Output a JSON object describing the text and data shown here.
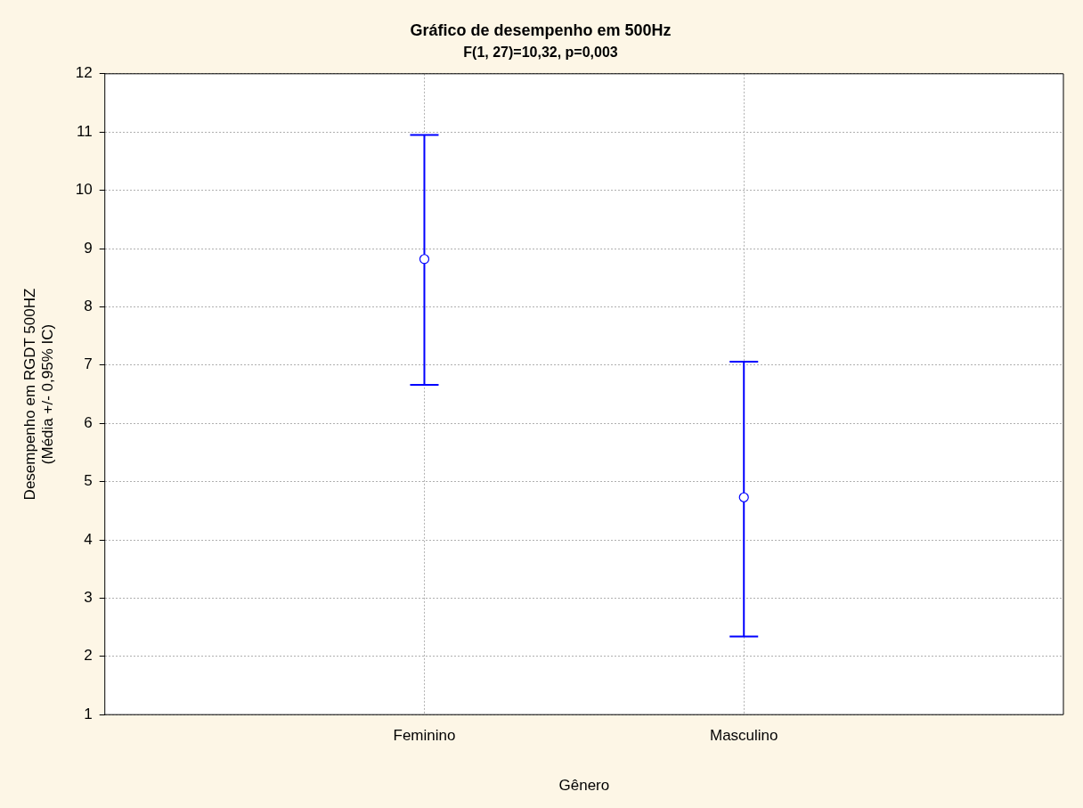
{
  "chart_data": {
    "type": "scatter",
    "title": "Gráfico de desempenho em 500Hz",
    "subtitle": "F(1, 27)=10,32, p=0,003",
    "xlabel": "Gênero",
    "ylabel": "Desempenho em RGDT 500HZ\n(Média +/- 0,95% IC)",
    "categories": [
      "Feminino",
      "Masculino"
    ],
    "series": [
      {
        "color": "#0000ff",
        "values": [
          8.82,
          4.73
        ],
        "errors": [
          [
            6.66,
            10.95
          ],
          [
            2.34,
            7.06
          ]
        ]
      }
    ],
    "ylim": [
      1,
      12
    ],
    "yticks": [
      1,
      2,
      3,
      4,
      5,
      6,
      7,
      8,
      9,
      10,
      11,
      12
    ],
    "grid": true,
    "marker": "circle",
    "legend": false
  }
}
